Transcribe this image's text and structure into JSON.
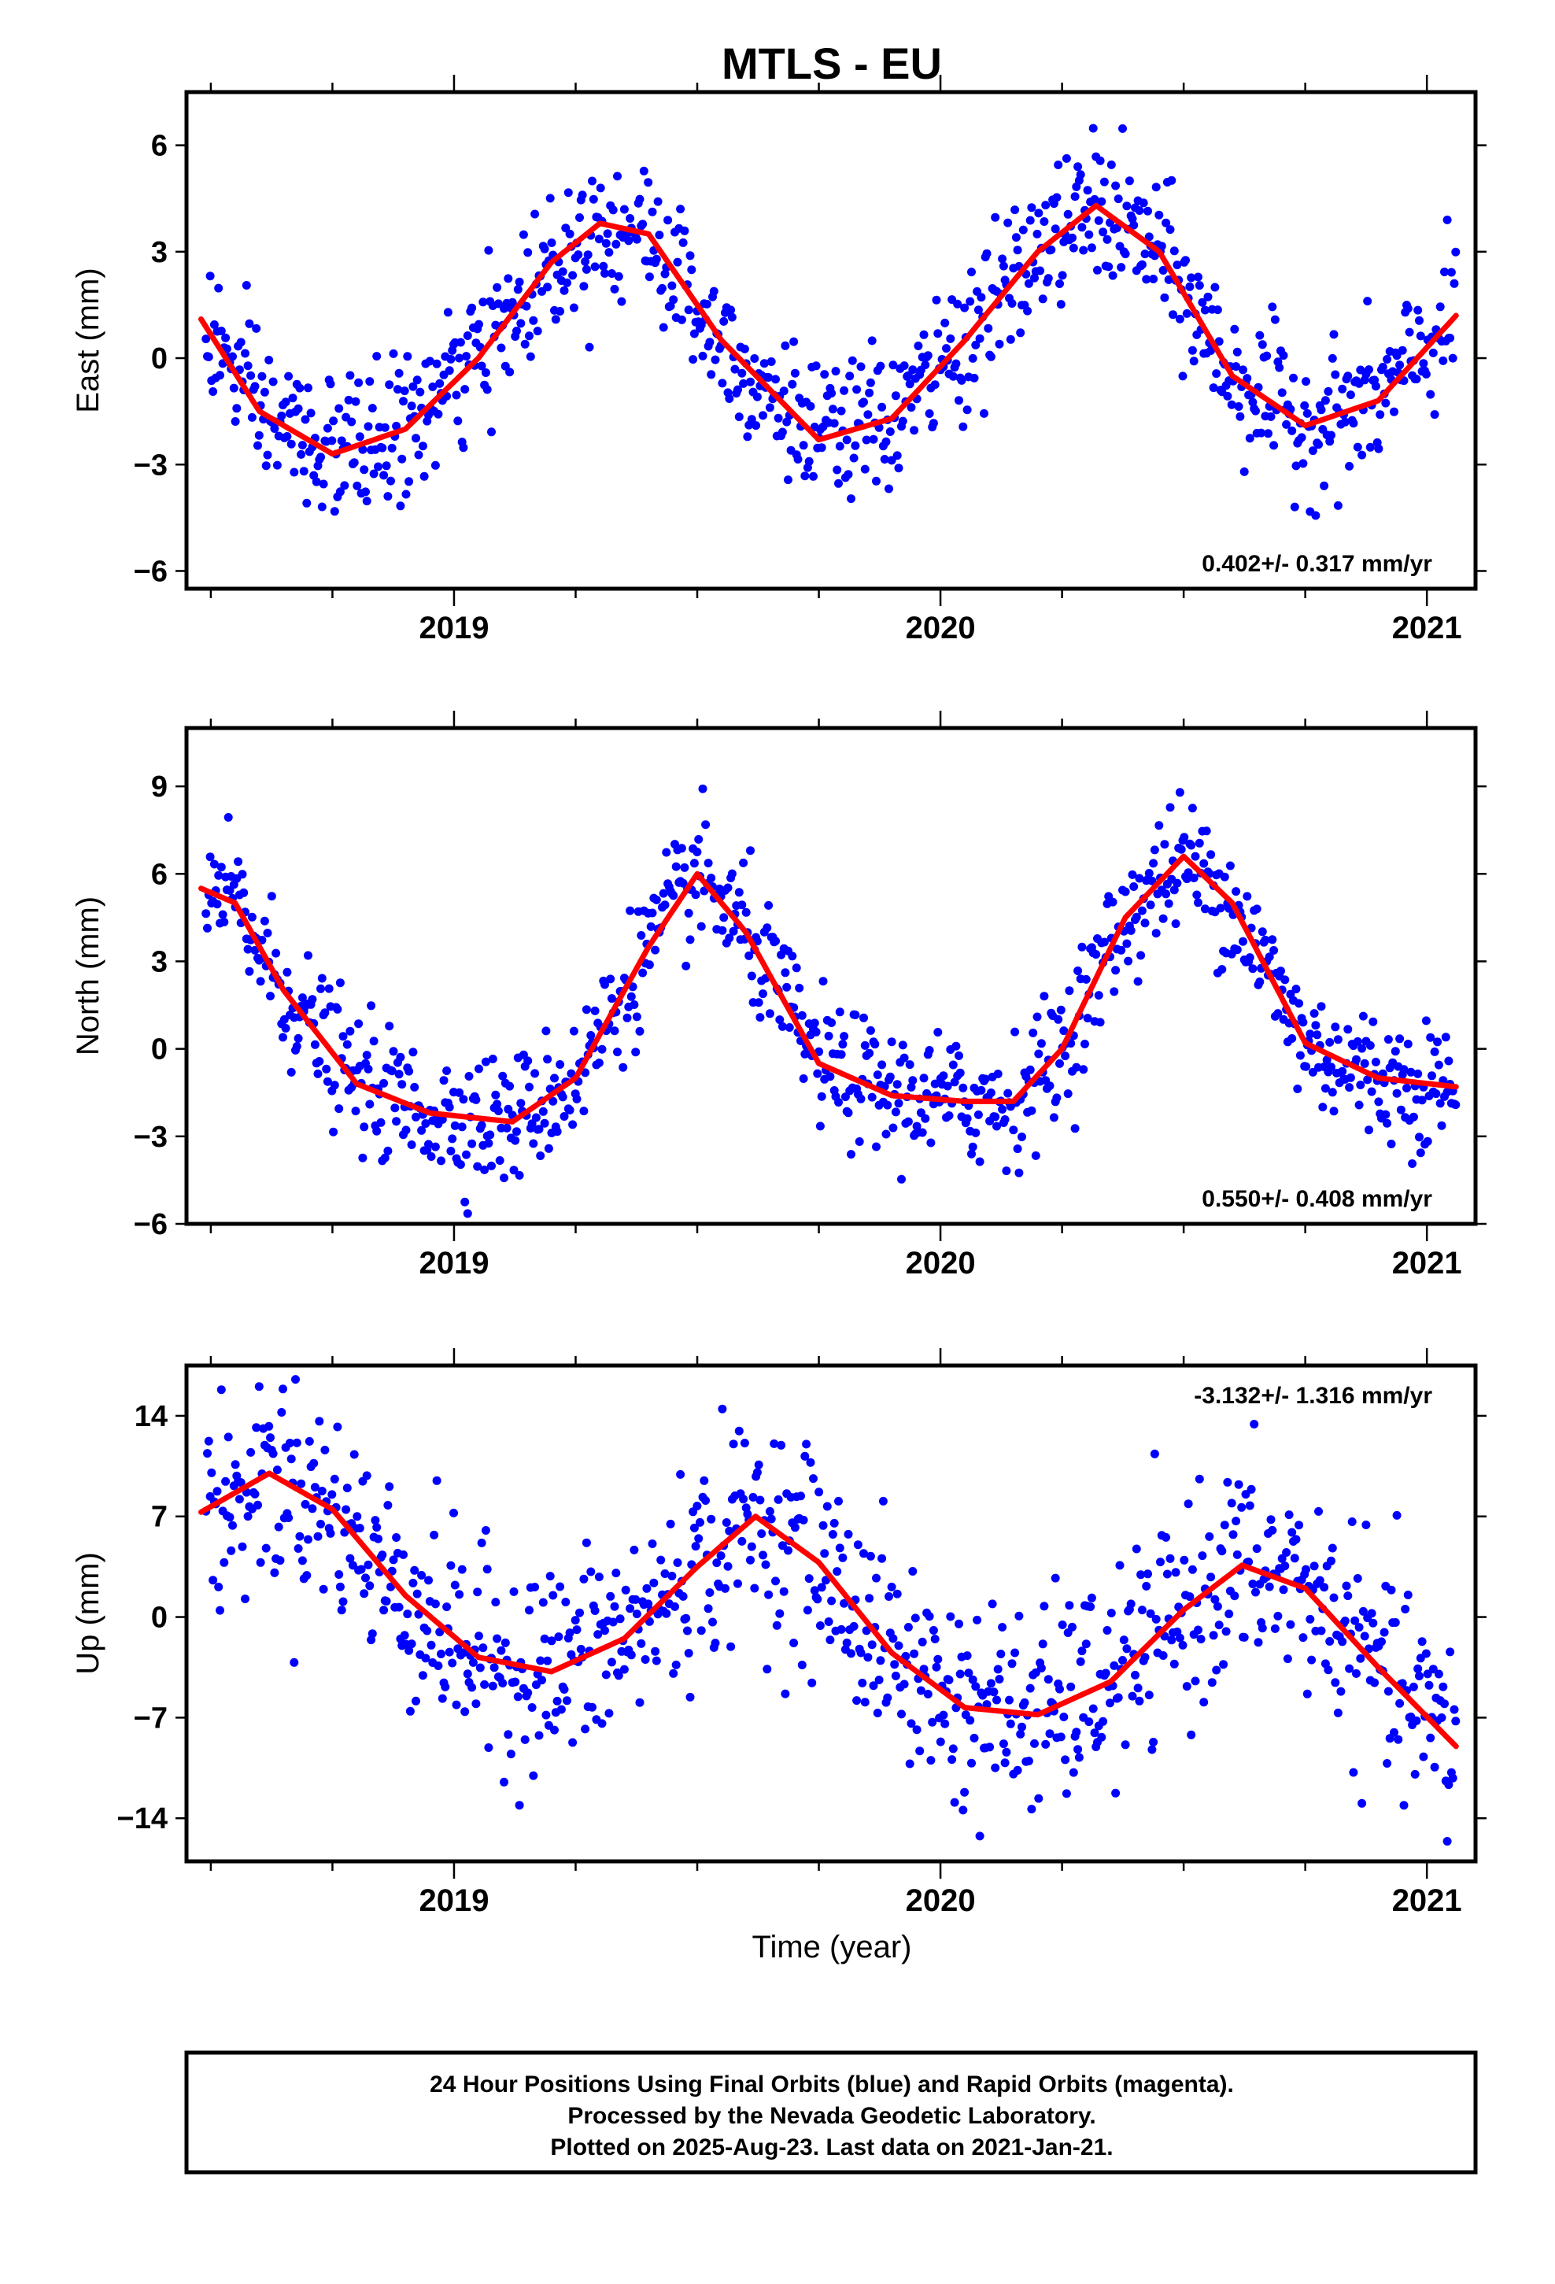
{
  "colors": {
    "points": "#0000ff",
    "fit": "#ff0000",
    "frame": "#000000"
  },
  "chart_data": [
    {
      "type": "scatter",
      "title": "MTLS - EU",
      "ylabel": "East (mm)",
      "xlabel": "",
      "xlim": [
        2018.45,
        2021.1
      ],
      "ylim": [
        -6.5,
        7.5
      ],
      "xticks": [
        2019,
        2020,
        2021
      ],
      "yticks": [
        -6,
        -3,
        0,
        3,
        6
      ],
      "ytick_labels": [
        "−6",
        "−3",
        "0",
        "3",
        "6"
      ],
      "rate": "0.402+/- 0.317 mm/yr",
      "rate_position": "bottom-right",
      "series": [
        {
          "kind": "fit",
          "x": [
            2018.48,
            2018.6,
            2018.75,
            2018.9,
            2019.05,
            2019.2,
            2019.3,
            2019.4,
            2019.55,
            2019.75,
            2019.9,
            2020.05,
            2020.2,
            2020.32,
            2020.45,
            2020.6,
            2020.75,
            2020.9,
            2021.06
          ],
          "y": [
            1.1,
            -1.5,
            -2.7,
            -2.0,
            0.0,
            2.7,
            3.8,
            3.5,
            0.5,
            -2.3,
            -1.7,
            0.5,
            3.0,
            4.3,
            3.0,
            -0.5,
            -1.9,
            -1.2,
            1.2
          ]
        },
        {
          "kind": "points",
          "amplitude": 1.0
        }
      ]
    },
    {
      "type": "scatter",
      "title": "",
      "ylabel": "North (mm)",
      "xlabel": "",
      "xlim": [
        2018.45,
        2021.1
      ],
      "ylim": [
        -6,
        11
      ],
      "xticks": [
        2019,
        2020,
        2021
      ],
      "yticks": [
        -6,
        -3,
        0,
        3,
        6,
        9
      ],
      "ytick_labels": [
        "−6",
        "−3",
        "0",
        "3",
        "6",
        "9"
      ],
      "rate": "0.550+/- 0.408 mm/yr",
      "rate_position": "bottom-right",
      "series": [
        {
          "kind": "fit",
          "x": [
            2018.48,
            2018.55,
            2018.65,
            2018.8,
            2018.95,
            2019.12,
            2019.25,
            2019.4,
            2019.5,
            2019.6,
            2019.75,
            2019.9,
            2020.05,
            2020.15,
            2020.25,
            2020.38,
            2020.5,
            2020.6,
            2020.75,
            2020.9,
            2021.06
          ],
          "y": [
            5.5,
            5.0,
            2.0,
            -1.2,
            -2.2,
            -2.5,
            -1.0,
            3.5,
            6.0,
            4.0,
            -0.5,
            -1.6,
            -1.8,
            -1.8,
            0.0,
            4.5,
            6.6,
            5.0,
            0.2,
            -1.0,
            -1.3
          ]
        },
        {
          "kind": "points",
          "amplitude": 1.1
        }
      ]
    },
    {
      "type": "scatter",
      "title": "",
      "ylabel": "Up (mm)",
      "xlabel": "Time (year)",
      "xlim": [
        2018.45,
        2021.1
      ],
      "ylim": [
        -17,
        17.5
      ],
      "xticks": [
        2019,
        2020,
        2021
      ],
      "yticks": [
        -14,
        -7,
        0,
        7,
        14
      ],
      "ytick_labels": [
        "−14",
        "−7",
        "0",
        "7",
        "14"
      ],
      "rate": "-3.132+/- 1.316 mm/yr",
      "rate_position": "top-right",
      "series": [
        {
          "kind": "fit",
          "x": [
            2018.48,
            2018.62,
            2018.75,
            2018.9,
            2019.05,
            2019.2,
            2019.35,
            2019.5,
            2019.62,
            2019.75,
            2019.9,
            2020.05,
            2020.2,
            2020.35,
            2020.5,
            2020.62,
            2020.75,
            2020.9,
            2021.06
          ],
          "y": [
            7.3,
            10.0,
            7.5,
            1.5,
            -2.8,
            -3.8,
            -1.5,
            3.5,
            7.0,
            3.8,
            -2.5,
            -6.3,
            -6.8,
            -4.5,
            0.5,
            3.6,
            2.0,
            -3.5,
            -9.0
          ]
        },
        {
          "kind": "points",
          "amplitude": 3.6
        }
      ]
    }
  ],
  "footer": {
    "line1": "24 Hour Positions Using Final Orbits (blue) and Rapid Orbits (magenta).",
    "line2": "Processed by the Nevada Geodetic Laboratory.",
    "line3": "Plotted on 2025-Aug-23. Last data on 2021-Jan-21."
  }
}
